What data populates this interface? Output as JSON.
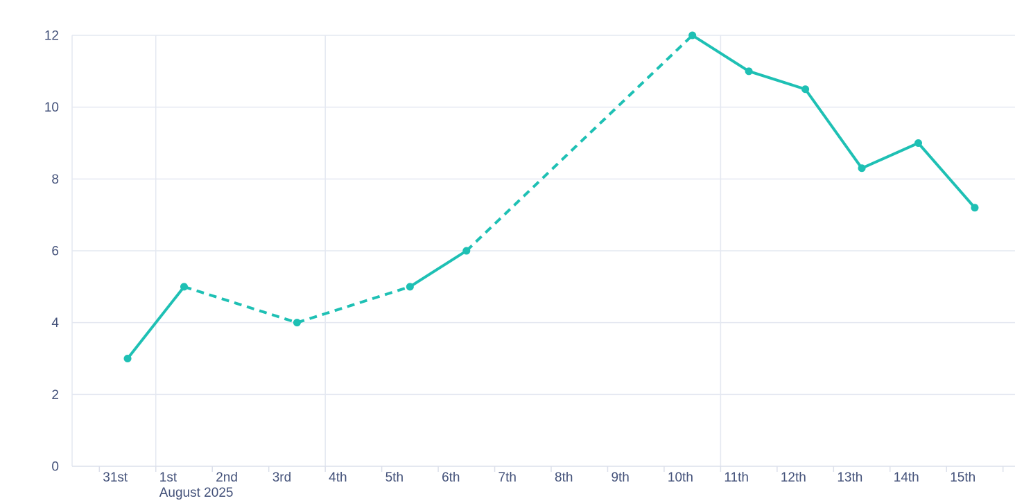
{
  "chart_data": {
    "type": "line",
    "title": "",
    "xlabel": "",
    "ylabel": "",
    "categories": [
      "31st",
      "1st",
      "2nd",
      "3rd",
      "4th",
      "5th",
      "6th",
      "7th",
      "8th",
      "9th",
      "10th",
      "11th",
      "12th",
      "13th",
      "14th",
      "15th"
    ],
    "values": [
      3,
      5,
      null,
      4,
      null,
      5,
      6,
      null,
      null,
      null,
      12,
      11,
      10.5,
      8.3,
      9,
      7.2
    ],
    "month_label": "August 2025",
    "month_label_category_index": 1,
    "ylim": [
      0,
      12
    ],
    "yticks": [
      0,
      2,
      4,
      6,
      8,
      10,
      12
    ],
    "vertical_gridline_category_indices": [
      1,
      4,
      11
    ],
    "grid": "horizontal at every y tick; vertical weekly/month-start lines",
    "legend": "none",
    "line_style": "solid between consecutive days, dashed interpolation across missing days",
    "marker": "filled circle on each recorded value",
    "colors": {
      "line": "#1ec0b4",
      "marker": "#1ec0b4",
      "grid": "#e4e8f1",
      "axis": "#dce0eb",
      "text": "#44527a",
      "background": "#ffffff"
    }
  }
}
